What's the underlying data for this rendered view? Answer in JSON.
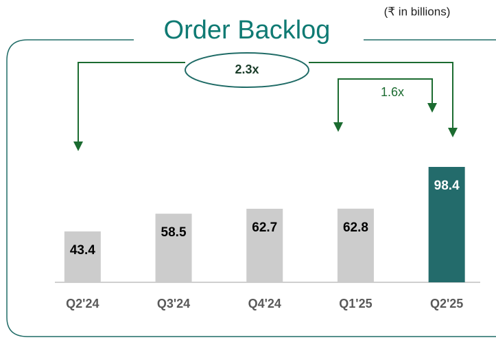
{
  "chart_data": {
    "type": "bar",
    "title": "Order Backlog",
    "subtitle": "(₹ in billions)",
    "categories": [
      "Q2'24",
      "Q3'24",
      "Q4'24",
      "Q1'25",
      "Q2'25"
    ],
    "values": [
      43.4,
      58.5,
      62.7,
      62.8,
      98.4
    ],
    "colors": [
      "#cccccc",
      "#cccccc",
      "#cccccc",
      "#cccccc",
      "#236b6b"
    ],
    "label_colors": [
      "#000000",
      "#000000",
      "#000000",
      "#000000",
      "#ffffff"
    ],
    "annotations": [
      "2.3x",
      "1.6x"
    ]
  }
}
